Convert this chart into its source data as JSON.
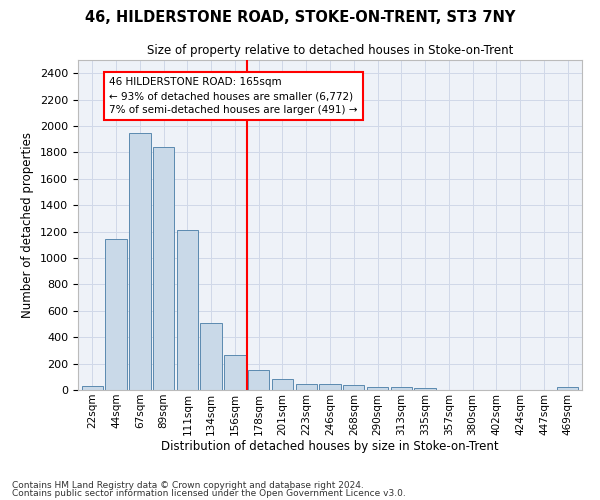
{
  "title": "46, HILDERSTONE ROAD, STOKE-ON-TRENT, ST3 7NY",
  "subtitle": "Size of property relative to detached houses in Stoke-on-Trent",
  "xlabel": "Distribution of detached houses by size in Stoke-on-Trent",
  "ylabel": "Number of detached properties",
  "bar_labels": [
    "22sqm",
    "44sqm",
    "67sqm",
    "89sqm",
    "111sqm",
    "134sqm",
    "156sqm",
    "178sqm",
    "201sqm",
    "223sqm",
    "246sqm",
    "268sqm",
    "290sqm",
    "313sqm",
    "335sqm",
    "357sqm",
    "380sqm",
    "402sqm",
    "424sqm",
    "447sqm",
    "469sqm"
  ],
  "bar_values": [
    30,
    1145,
    1950,
    1840,
    1210,
    510,
    265,
    155,
    80,
    47,
    42,
    40,
    20,
    20,
    15,
    0,
    0,
    0,
    0,
    0,
    20
  ],
  "bar_color": "#c9d9e8",
  "bar_edge_color": "#5a8ab0",
  "ylim": [
    0,
    2500
  ],
  "yticks": [
    0,
    200,
    400,
    600,
    800,
    1000,
    1200,
    1400,
    1600,
    1800,
    2000,
    2200,
    2400
  ],
  "property_line_x": 6.5,
  "annotation_line1": "46 HILDERSTONE ROAD: 165sqm",
  "annotation_line2": "← 93% of detached houses are smaller (6,772)",
  "annotation_line3": "7% of semi-detached houses are larger (491) →",
  "footnote1": "Contains HM Land Registry data © Crown copyright and database right 2024.",
  "footnote2": "Contains public sector information licensed under the Open Government Licence v3.0.",
  "grid_color": "#d0d8e8",
  "background_color": "#eef2f8"
}
